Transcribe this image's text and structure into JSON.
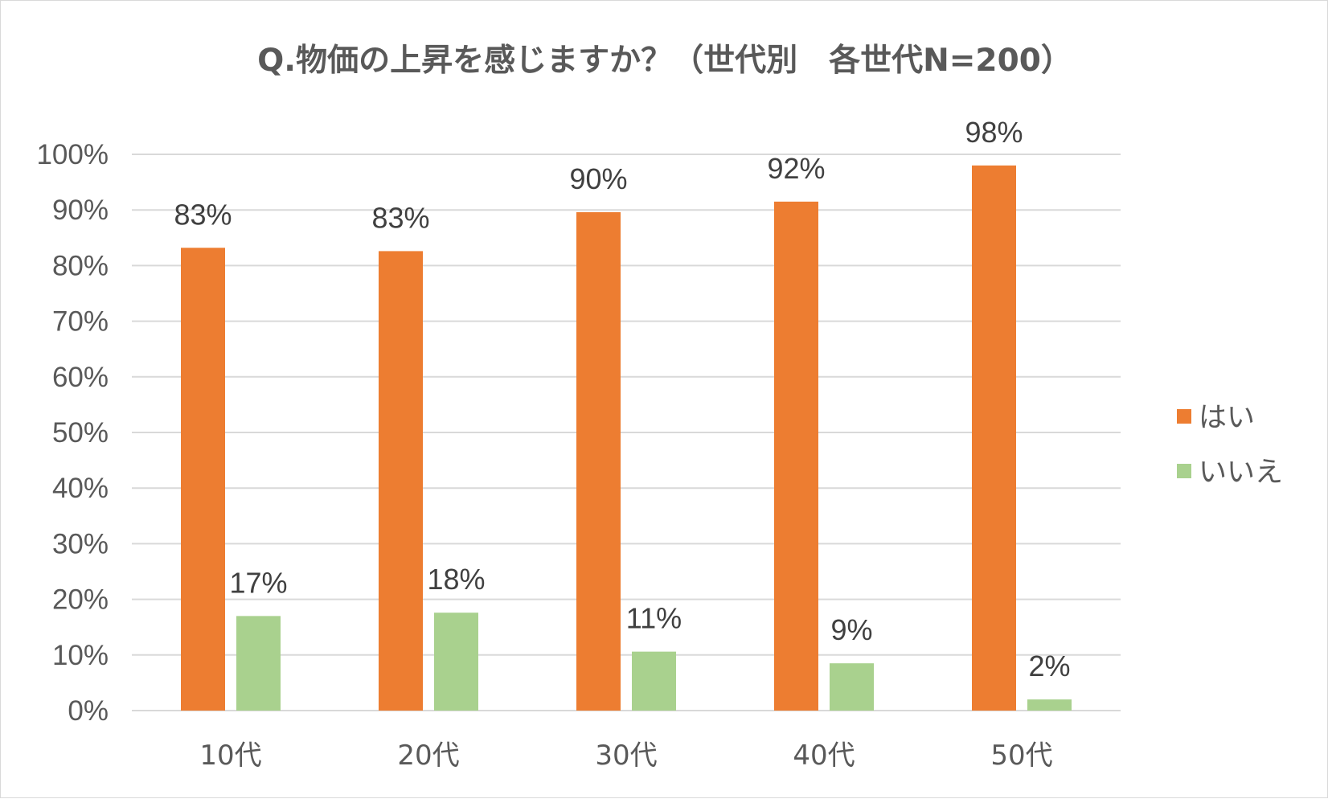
{
  "chart_data": {
    "type": "bar",
    "title": "Q.物価の上昇を感じますか？（世代別　各世代N=200）",
    "categories": [
      "10代",
      "20代",
      "30代",
      "40代",
      "50代"
    ],
    "series": [
      {
        "name": "はい",
        "color": "#ed7d31",
        "values": [
          83.2,
          82.6,
          89.6,
          91.5,
          98.0
        ],
        "labels": [
          "83%",
          "83%",
          "90%",
          "92%",
          "98%"
        ]
      },
      {
        "name": "いいえ",
        "color": "#a9d18e",
        "values": [
          17.0,
          17.6,
          10.6,
          8.5,
          2.0
        ],
        "labels": [
          "17%",
          "18%",
          "11%",
          "9%",
          "2%"
        ]
      }
    ],
    "ylim": [
      0,
      100
    ],
    "yticks": [
      0,
      10,
      20,
      30,
      40,
      50,
      60,
      70,
      80,
      90,
      100
    ],
    "ytick_labels": [
      "0%",
      "10%",
      "20%",
      "30%",
      "40%",
      "50%",
      "60%",
      "70%",
      "80%",
      "90%",
      "100%"
    ],
    "xlabel": "",
    "ylabel": "",
    "grid": true,
    "legend_position": "right"
  }
}
